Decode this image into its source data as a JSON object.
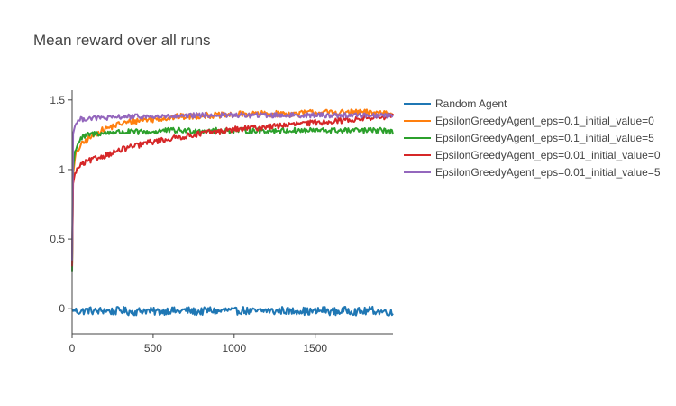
{
  "chart_data": {
    "type": "line",
    "title": "Mean reward over all runs",
    "xlabel": "",
    "ylabel": "",
    "xlim": [
      0,
      1980
    ],
    "ylim": [
      -0.18,
      1.57
    ],
    "xticks": [
      0,
      500,
      1000,
      1500
    ],
    "yticks": [
      0,
      0.5,
      1,
      1.5
    ],
    "xtick_labels": [
      "0",
      "500",
      "1000",
      "1500"
    ],
    "ytick_labels": [
      "0",
      "0.5",
      "1",
      "1.5"
    ],
    "grid": false,
    "legend_position": "right",
    "series": [
      {
        "name": "Random Agent",
        "color": "#1f77b4",
        "x": [
          0,
          50,
          100,
          150,
          200,
          250,
          300,
          350,
          400,
          450,
          500,
          550,
          600,
          650,
          700,
          750,
          800,
          850,
          900,
          950,
          1000,
          1050,
          1100,
          1150,
          1200,
          1250,
          1300,
          1350,
          1400,
          1450,
          1500,
          1550,
          1600,
          1650,
          1700,
          1750,
          1800,
          1850,
          1900,
          1950,
          1980
        ],
        "values": [
          -0.01,
          -0.02,
          -0.01,
          -0.02,
          -0.01,
          -0.02,
          -0.01,
          -0.02,
          -0.02,
          -0.01,
          -0.02,
          -0.02,
          -0.01,
          -0.02,
          -0.01,
          -0.02,
          -0.02,
          -0.01,
          -0.02,
          -0.01,
          -0.02,
          -0.01,
          -0.02,
          -0.02,
          -0.01,
          -0.02,
          -0.01,
          -0.02,
          -0.01,
          -0.02,
          -0.02,
          -0.01,
          -0.02,
          -0.02,
          -0.01,
          -0.02,
          -0.02,
          -0.01,
          -0.02,
          -0.02,
          -0.04
        ]
      },
      {
        "name": "EpsilonGreedyAgent_eps=0.1_initial_value=0",
        "color": "#ff7f0e",
        "x": [
          0,
          5,
          20,
          50,
          100,
          150,
          200,
          250,
          300,
          350,
          400,
          450,
          500,
          550,
          600,
          650,
          700,
          750,
          800,
          850,
          900,
          950,
          1000,
          1050,
          1100,
          1150,
          1200,
          1250,
          1300,
          1350,
          1400,
          1450,
          1500,
          1550,
          1600,
          1650,
          1700,
          1750,
          1800,
          1850,
          1900,
          1950,
          1980
        ],
        "values": [
          0.3,
          0.95,
          1.1,
          1.17,
          1.22,
          1.26,
          1.29,
          1.31,
          1.33,
          1.34,
          1.35,
          1.36,
          1.36,
          1.37,
          1.37,
          1.38,
          1.38,
          1.38,
          1.39,
          1.39,
          1.39,
          1.39,
          1.39,
          1.4,
          1.4,
          1.4,
          1.4,
          1.4,
          1.4,
          1.4,
          1.4,
          1.41,
          1.41,
          1.41,
          1.41,
          1.41,
          1.41,
          1.41,
          1.41,
          1.41,
          1.41,
          1.41,
          1.41
        ]
      },
      {
        "name": "EpsilonGreedyAgent_eps=0.1_initial_value=5",
        "color": "#2ca02c",
        "x": [
          0,
          5,
          20,
          50,
          100,
          150,
          200,
          250,
          300,
          350,
          400,
          450,
          500,
          550,
          600,
          650,
          700,
          750,
          800,
          850,
          900,
          950,
          1000,
          1050,
          1100,
          1150,
          1200,
          1250,
          1300,
          1350,
          1400,
          1450,
          1500,
          1550,
          1600,
          1650,
          1700,
          1750,
          1800,
          1850,
          1900,
          1950,
          1980
        ],
        "values": [
          0.27,
          1.0,
          1.15,
          1.22,
          1.25,
          1.26,
          1.26,
          1.27,
          1.27,
          1.27,
          1.27,
          1.27,
          1.27,
          1.28,
          1.28,
          1.28,
          1.28,
          1.28,
          1.28,
          1.28,
          1.28,
          1.28,
          1.28,
          1.28,
          1.28,
          1.28,
          1.28,
          1.28,
          1.28,
          1.28,
          1.28,
          1.28,
          1.28,
          1.28,
          1.28,
          1.28,
          1.28,
          1.28,
          1.28,
          1.28,
          1.28,
          1.28,
          1.27
        ]
      },
      {
        "name": "EpsilonGreedyAgent_eps=0.01_initial_value=0",
        "color": "#d62728",
        "x": [
          0,
          5,
          20,
          50,
          100,
          150,
          200,
          250,
          300,
          350,
          400,
          450,
          500,
          550,
          600,
          650,
          700,
          750,
          800,
          850,
          900,
          950,
          1000,
          1050,
          1100,
          1150,
          1200,
          1250,
          1300,
          1350,
          1400,
          1450,
          1500,
          1550,
          1600,
          1650,
          1700,
          1750,
          1800,
          1850,
          1900,
          1950,
          1980
        ],
        "values": [
          0.3,
          0.9,
          0.98,
          1.03,
          1.06,
          1.08,
          1.1,
          1.12,
          1.14,
          1.16,
          1.17,
          1.19,
          1.2,
          1.21,
          1.22,
          1.23,
          1.24,
          1.25,
          1.26,
          1.27,
          1.27,
          1.28,
          1.29,
          1.29,
          1.3,
          1.3,
          1.31,
          1.31,
          1.32,
          1.32,
          1.33,
          1.33,
          1.34,
          1.34,
          1.35,
          1.35,
          1.36,
          1.36,
          1.37,
          1.37,
          1.38,
          1.38,
          1.39
        ]
      },
      {
        "name": "EpsilonGreedyAgent_eps=0.01_initial_value=5",
        "color": "#9467bd",
        "x": [
          0,
          5,
          20,
          50,
          100,
          150,
          200,
          250,
          300,
          350,
          400,
          450,
          500,
          550,
          600,
          650,
          700,
          750,
          800,
          850,
          900,
          950,
          1000,
          1050,
          1100,
          1150,
          1200,
          1250,
          1300,
          1350,
          1400,
          1450,
          1500,
          1550,
          1600,
          1650,
          1700,
          1750,
          1800,
          1850,
          1900,
          1950,
          1980
        ],
        "values": [
          0.35,
          1.25,
          1.33,
          1.36,
          1.37,
          1.37,
          1.37,
          1.37,
          1.38,
          1.38,
          1.38,
          1.38,
          1.38,
          1.38,
          1.38,
          1.38,
          1.38,
          1.39,
          1.39,
          1.39,
          1.39,
          1.39,
          1.39,
          1.39,
          1.39,
          1.39,
          1.39,
          1.39,
          1.39,
          1.39,
          1.39,
          1.39,
          1.39,
          1.39,
          1.39,
          1.39,
          1.39,
          1.39,
          1.39,
          1.39,
          1.39,
          1.39,
          1.39
        ]
      }
    ]
  }
}
